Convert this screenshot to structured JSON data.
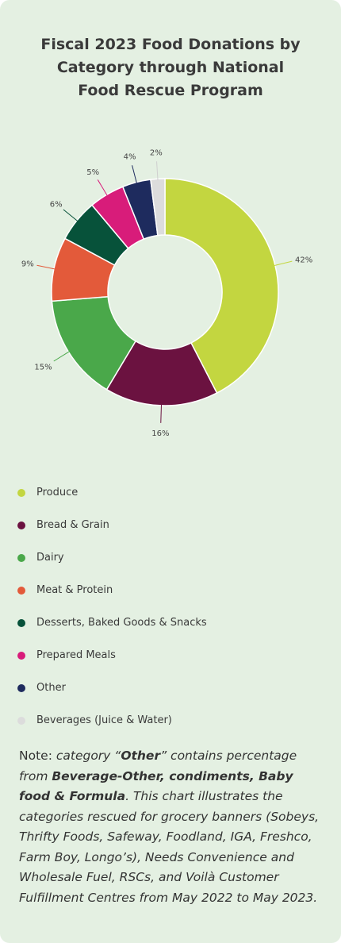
{
  "title_lines": [
    "Fiscal 2023 Food Donations by",
    "Category through National",
    "Food Rescue Program"
  ],
  "chart_data": {
    "type": "pie",
    "donut": true,
    "title": "Fiscal 2023 Food Donations by Category through National Food Rescue Program",
    "categories": [
      "Produce",
      "Bread & Grain",
      "Dairy",
      "Meat & Protein",
      "Desserts, Baked Goods & Snacks",
      "Prepared Meals",
      "Other",
      "Beverages (Juice & Water)"
    ],
    "values": [
      42,
      16,
      15,
      9,
      6,
      5,
      4,
      2
    ],
    "data_labels": [
      "42%",
      "16%",
      "15%",
      "9%",
      "6%",
      "5%",
      "4%",
      "2%"
    ],
    "colors": [
      "#c3d640",
      "#6b1240",
      "#4aa84a",
      "#e35a3a",
      "#07523a",
      "#d81c7a",
      "#1e2b5e",
      "#dcdcdc"
    ],
    "legend_position": "bottom",
    "grid": false
  },
  "note": {
    "lead": "Note: ",
    "p1": "category “",
    "b1": "Other",
    "p2": "” contains percentage from ",
    "b2": "Beverage-Other, condiments, Baby food & Formula",
    "p3": ". This chart illustrates the categories rescued for grocery banners (Sobeys, Thrifty Foods, Safeway, Foodland, IGA, Freshco, Farm Boy, Longo’s), Needs Convenience and Wholesale Fuel, RSCs, and Voilà Customer Fulfillment Centres from May 2022 to May 2023."
  }
}
